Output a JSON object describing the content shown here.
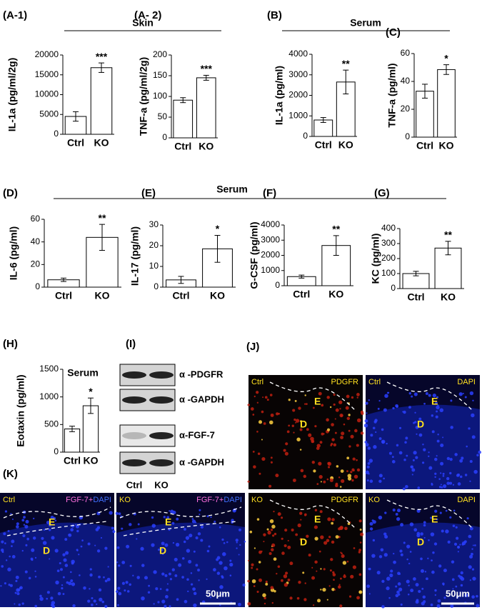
{
  "panel_labels": [
    "(A-1)",
    "(A- 2)",
    "(B)",
    "(C)",
    "(D)",
    "(E)",
    "(F)",
    "(G)",
    "(H)",
    "(I)",
    "(J)",
    "(K)"
  ],
  "sections": [
    "Skin",
    "Serum",
    "Serum"
  ],
  "chart_data": [
    {
      "type": "bar",
      "ylabel": "IL-1a (pg/ml/2g)",
      "categories": [
        "Ctrl",
        "KO"
      ],
      "values": [
        4500,
        16800
      ],
      "errors": [
        1200,
        1200
      ],
      "significance": "***",
      "ylim": [
        0,
        20000
      ],
      "yticks": [
        0,
        5000,
        10000,
        15000,
        20000
      ]
    },
    {
      "type": "bar",
      "ylabel": "TNF-a (pg/ml/2g)",
      "categories": [
        "Ctrl",
        "KO"
      ],
      "values": [
        91,
        145
      ],
      "errors": [
        6,
        6
      ],
      "significance": "***",
      "ylim": [
        0,
        200
      ],
      "yticks": [
        0,
        50,
        100,
        150,
        200
      ]
    },
    {
      "type": "bar",
      "ylabel": "IL-1a (pg/ml)",
      "categories": [
        "Ctrl",
        "KO"
      ],
      "values": [
        800,
        2650
      ],
      "errors": [
        120,
        580
      ],
      "significance": "**",
      "ylim": [
        0,
        4000
      ],
      "yticks": [
        0,
        1000,
        2000,
        3000,
        4000
      ]
    },
    {
      "type": "bar",
      "ylabel": "TNF-a (pg/ml)",
      "categories": [
        "Ctrl",
        "KO"
      ],
      "values": [
        33,
        48.5
      ],
      "errors": [
        5,
        3.5
      ],
      "significance": "*",
      "ylim": [
        0,
        60
      ],
      "yticks": [
        0,
        20,
        40,
        60
      ]
    },
    {
      "type": "bar",
      "ylabel": "IL-6 (pg/ml)",
      "categories": [
        "Ctrl",
        "KO"
      ],
      "values": [
        6.5,
        44
      ],
      "errors": [
        1.5,
        11.5
      ],
      "significance": "**",
      "ylim": [
        0,
        60
      ],
      "yticks": [
        0,
        20,
        40,
        60
      ]
    },
    {
      "type": "bar",
      "ylabel": "IL-17 (pg/ml)",
      "categories": [
        "Ctrl",
        "KO"
      ],
      "values": [
        3.5,
        18.5
      ],
      "errors": [
        1.7,
        6.5
      ],
      "significance": "*",
      "ylim": [
        0,
        30
      ],
      "yticks": [
        0,
        10,
        20,
        30
      ]
    },
    {
      "type": "bar",
      "ylabel": "G-CSF (pg/ml)",
      "categories": [
        "Ctrl",
        "KO"
      ],
      "values": [
        600,
        2650
      ],
      "errors": [
        100,
        650
      ],
      "significance": "**",
      "ylim": [
        0,
        4000
      ],
      "yticks": [
        0,
        1000,
        2000,
        3000,
        4000
      ]
    },
    {
      "type": "bar",
      "ylabel": "KC (pg/ml)",
      "categories": [
        "Ctrl",
        "KO"
      ],
      "values": [
        100,
        270
      ],
      "errors": [
        15,
        45
      ],
      "significance": "**",
      "ylim": [
        0,
        400
      ],
      "yticks": [
        0,
        100,
        200,
        300,
        400
      ]
    },
    {
      "type": "bar",
      "title": "Serum",
      "ylabel": "Eotaxin (pg/ml)",
      "categories": [
        "Ctrl",
        "KO"
      ],
      "values": [
        420,
        840
      ],
      "errors": [
        50,
        140
      ],
      "significance": "*",
      "ylim": [
        0,
        1500
      ],
      "yticks": [
        0,
        500,
        1000,
        1500
      ]
    }
  ],
  "blots": {
    "labels": [
      "α -PDGFR",
      "α -GAPDH",
      "α-FGF-7",
      "α -GAPDH"
    ],
    "lanes": [
      "Ctrl",
      "KO"
    ]
  },
  "images_J": {
    "panels": [
      {
        "condition": "Ctrl",
        "stain": "PDGFR",
        "regions": [
          "E",
          "D"
        ]
      },
      {
        "condition": "Ctrl",
        "stain": "DAPI",
        "regions": [
          "E",
          "D"
        ]
      },
      {
        "condition": "KO",
        "stain": "PDGFR",
        "regions": [
          "E",
          "D"
        ]
      },
      {
        "condition": "KO",
        "stain": "DAPI",
        "regions": [
          "E",
          "D"
        ]
      }
    ],
    "scale": "50μm"
  },
  "images_K": {
    "panels": [
      {
        "condition": "Ctrl",
        "stain": "FGF-7+",
        "counterstain": "DAPI",
        "regions": [
          "E",
          "D"
        ]
      },
      {
        "condition": "KO",
        "stain": "FGF-7+",
        "counterstain": "DAPI",
        "regions": [
          "E",
          "D"
        ]
      }
    ],
    "scale": "50μm"
  }
}
